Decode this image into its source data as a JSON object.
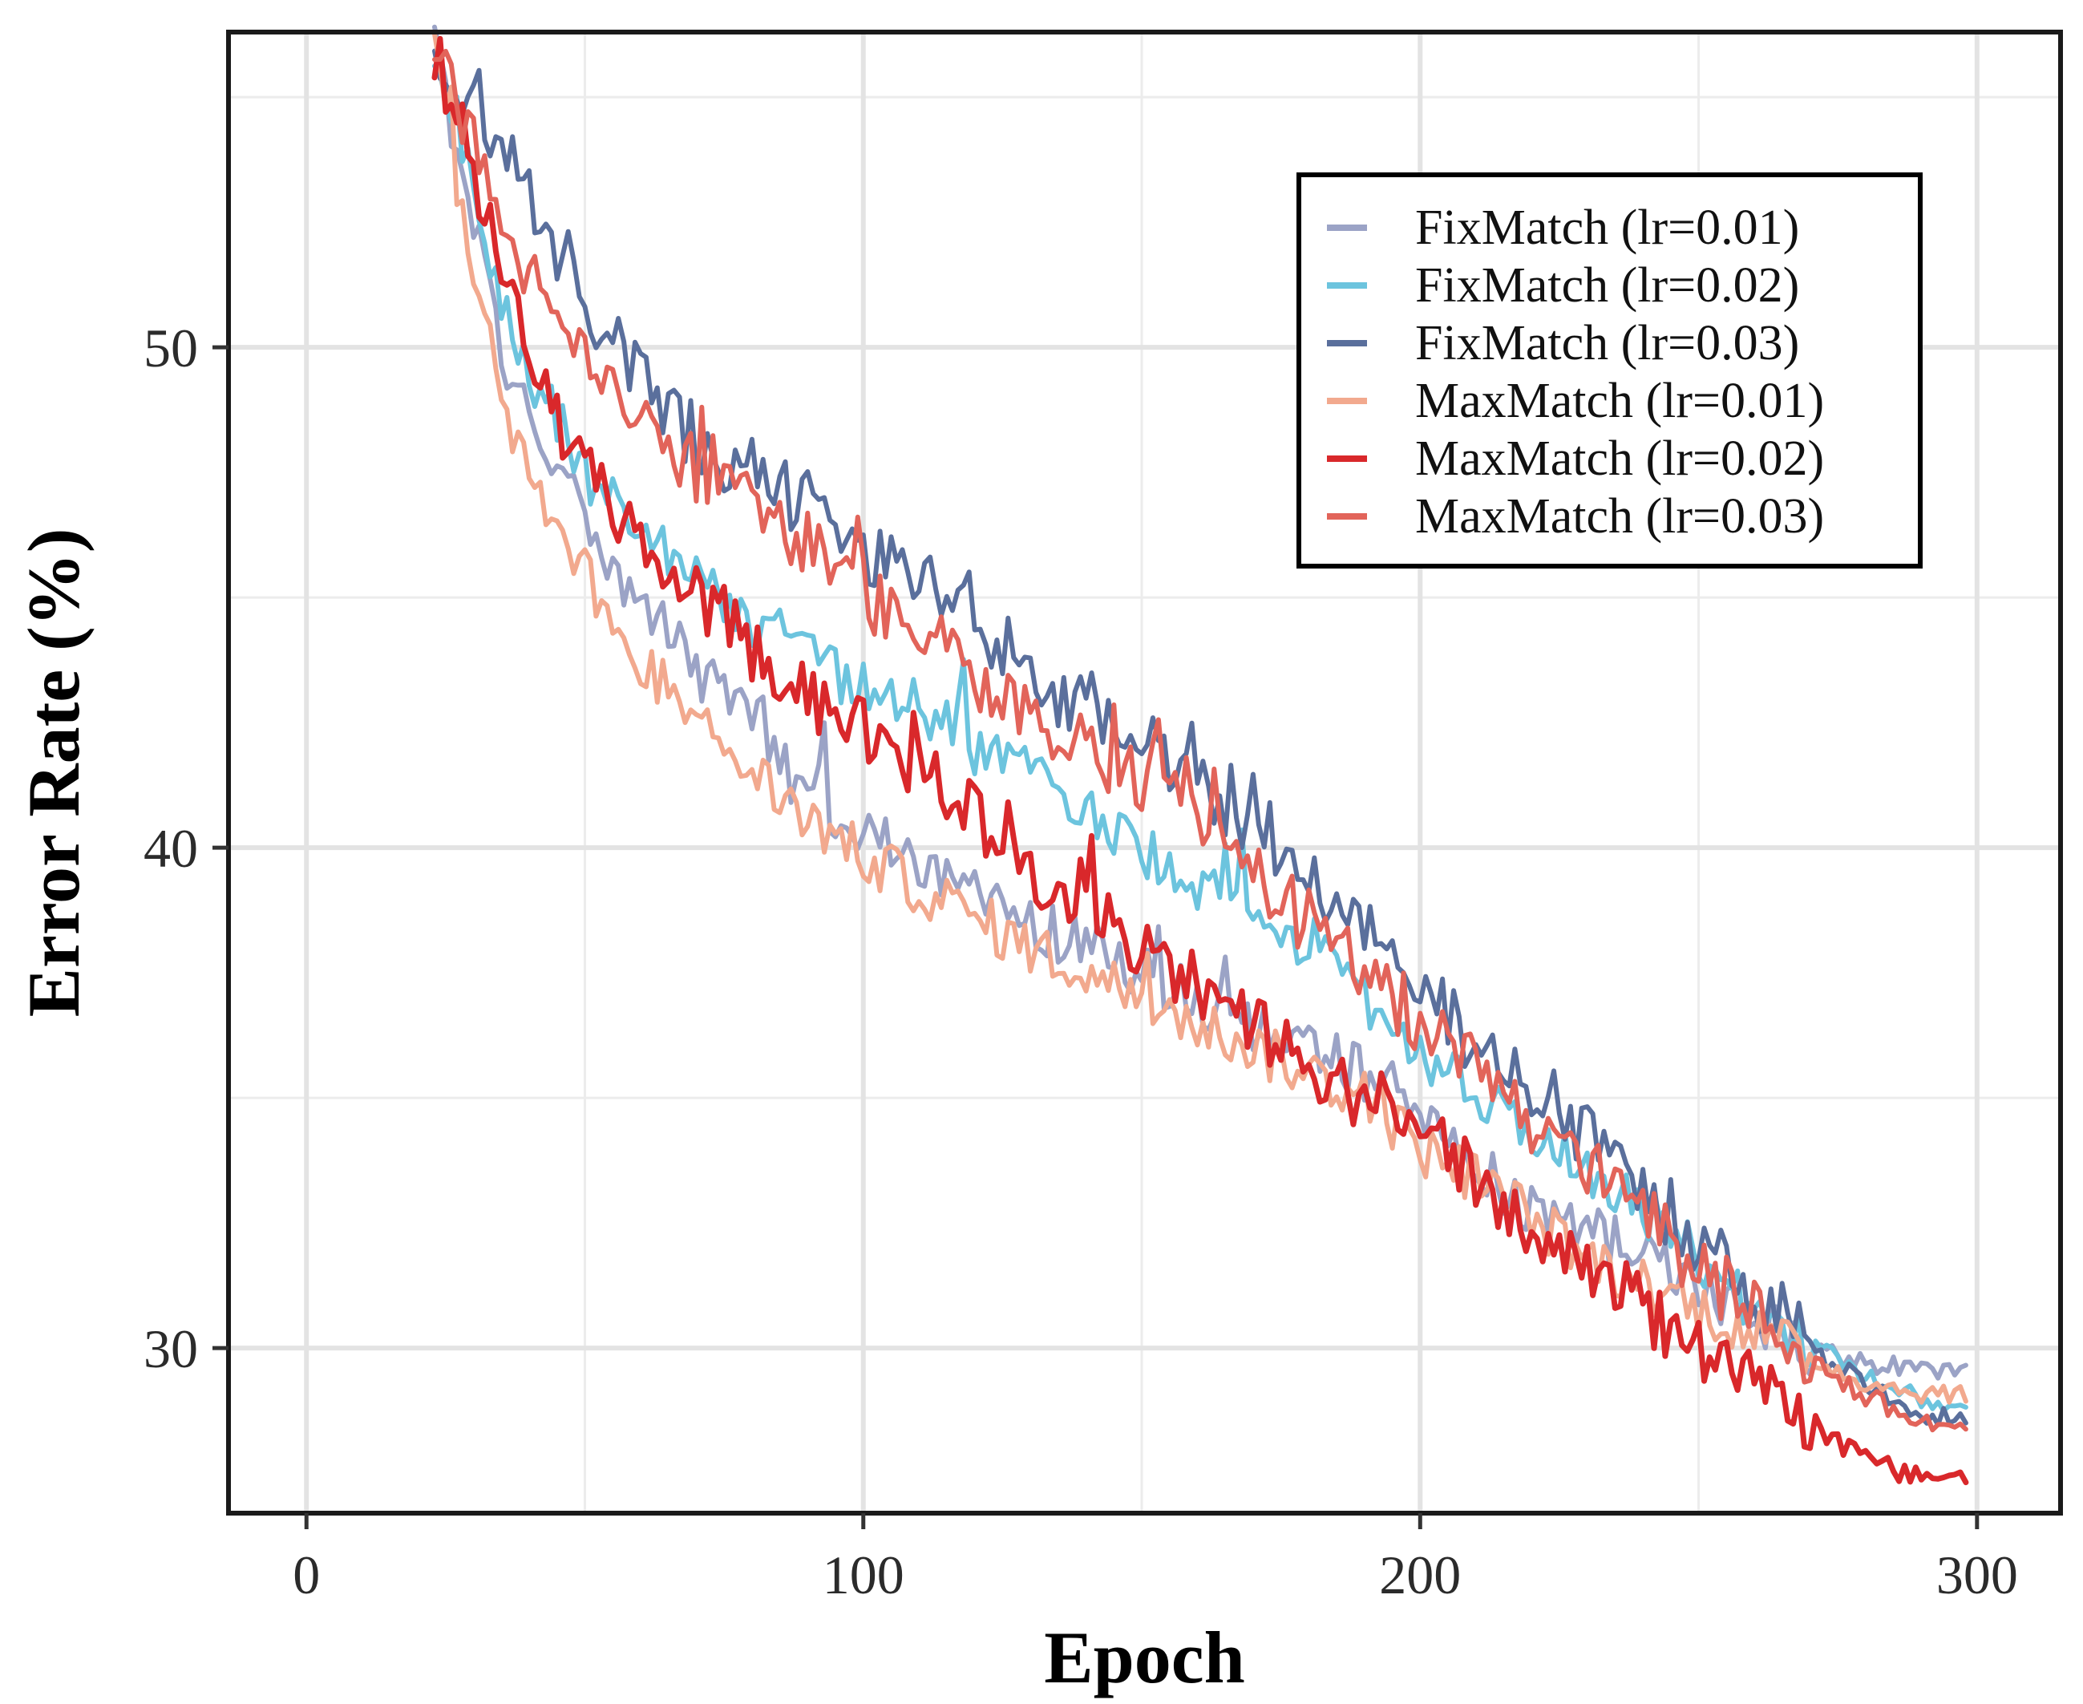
{
  "chart_data": {
    "type": "line",
    "title": "",
    "xlabel": "Epoch",
    "ylabel": "Error Rate (%)",
    "xlim": [
      -14,
      315
    ],
    "ylim": [
      26.7,
      56.3
    ],
    "xticks": [
      0,
      100,
      200,
      300
    ],
    "xtick_labels": [
      "0",
      "100",
      "200",
      "300"
    ],
    "yticks": [
      30,
      40,
      50
    ],
    "ytick_labels": [
      "30",
      "40",
      "50"
    ],
    "grid": true,
    "legend_position": "top-right",
    "series": [
      {
        "name": "FixMatch (lr=0.01)",
        "color": "#9ba3c6",
        "noise": 0.55,
        "x": [
          23,
          26,
          30,
          35,
          40,
          45,
          50,
          55,
          60,
          70,
          80,
          90,
          100,
          110,
          120,
          130,
          140,
          150,
          160,
          170,
          180,
          190,
          200,
          210,
          220,
          230,
          240,
          250,
          260,
          270,
          280,
          290,
          298
        ],
        "y": [
          56,
          54.5,
          52.5,
          50,
          48.5,
          47.5,
          46.5,
          45.5,
          45,
          43.5,
          42.5,
          41,
          40.3,
          39.8,
          39,
          38.5,
          38,
          37.5,
          37,
          36.5,
          36,
          35.5,
          34.5,
          33.6,
          32.8,
          32.4,
          31.8,
          31.2,
          30.6,
          30,
          29.7,
          29.6,
          29.5
        ]
      },
      {
        "name": "FixMatch (lr=0.02)",
        "color": "#6cc4de",
        "noise": 0.55,
        "x": [
          23,
          26,
          30,
          35,
          40,
          45,
          50,
          55,
          60,
          70,
          80,
          90,
          100,
          110,
          120,
          130,
          140,
          150,
          160,
          170,
          180,
          190,
          200,
          210,
          220,
          230,
          240,
          250,
          260,
          270,
          280,
          290,
          298
        ],
        "y": [
          56,
          55,
          53,
          51,
          49.5,
          48.5,
          47.5,
          47,
          46.5,
          45.5,
          44.5,
          43.8,
          43.2,
          42.8,
          42,
          41.5,
          40.8,
          40,
          39.3,
          38.7,
          38,
          37,
          36,
          35,
          34.3,
          33.6,
          32.8,
          31.8,
          30.8,
          30.1,
          29.4,
          29,
          28.7
        ]
      },
      {
        "name": "FixMatch (lr=0.03)",
        "color": "#5a6f9c",
        "noise": 0.75,
        "x": [
          23,
          26,
          30,
          35,
          40,
          45,
          50,
          55,
          60,
          70,
          80,
          90,
          100,
          110,
          120,
          130,
          140,
          150,
          160,
          170,
          180,
          190,
          200,
          210,
          220,
          230,
          240,
          250,
          260,
          270,
          280,
          290,
          298
        ],
        "y": [
          56,
          55.5,
          55,
          54,
          53,
          52,
          51,
          50,
          49.3,
          48.2,
          47.5,
          46.8,
          46,
          45.3,
          44.5,
          43.5,
          42.8,
          42,
          41.5,
          40.5,
          39.5,
          38.3,
          37,
          36.2,
          35.2,
          34.2,
          33.2,
          32.2,
          31.1,
          30,
          29.2,
          28.6,
          28.6
        ]
      },
      {
        "name": "MaxMatch (lr=0.01)",
        "color": "#f2a98e",
        "noise": 0.55,
        "x": [
          23,
          26,
          30,
          35,
          40,
          45,
          50,
          55,
          60,
          70,
          80,
          90,
          100,
          110,
          120,
          130,
          140,
          150,
          160,
          170,
          180,
          190,
          200,
          210,
          220,
          230,
          240,
          250,
          260,
          270,
          280,
          290,
          298
        ],
        "y": [
          56,
          54,
          51.5,
          49,
          47.5,
          46.5,
          45.5,
          44.5,
          43.8,
          42.5,
          41.5,
          40.6,
          39.8,
          39.2,
          38.6,
          38,
          37.5,
          37,
          36.5,
          36,
          35.5,
          35,
          34,
          33.4,
          32.6,
          31.8,
          31.3,
          30.8,
          30.3,
          29.8,
          29.3,
          29.1,
          29.1
        ]
      },
      {
        "name": "MaxMatch (lr=0.02)",
        "color": "#d9282b",
        "noise": 0.65,
        "x": [
          23,
          26,
          30,
          35,
          40,
          45,
          50,
          55,
          60,
          70,
          80,
          90,
          100,
          110,
          120,
          130,
          140,
          150,
          160,
          170,
          180,
          190,
          200,
          210,
          220,
          230,
          240,
          250,
          260,
          270,
          280,
          290,
          298
        ],
        "y": [
          56,
          55,
          53.5,
          51.5,
          49.8,
          48.5,
          47.5,
          46.8,
          46,
          45,
          44,
          43,
          42.4,
          41.5,
          40.7,
          39.5,
          38.7,
          38,
          37.3,
          36.5,
          35.5,
          35,
          34.8,
          33.3,
          32.5,
          31.8,
          30.8,
          30,
          29.3,
          28.5,
          27.8,
          27.4,
          27.3
        ]
      },
      {
        "name": "MaxMatch (lr=0.03)",
        "color": "#e2645a",
        "noise": 0.7,
        "x": [
          23,
          26,
          30,
          35,
          40,
          45,
          50,
          55,
          60,
          70,
          80,
          90,
          100,
          110,
          120,
          130,
          140,
          150,
          160,
          170,
          180,
          190,
          200,
          210,
          220,
          230,
          240,
          250,
          260,
          270,
          280,
          290,
          298
        ],
        "y": [
          56,
          55,
          54,
          52.5,
          51.5,
          50.5,
          49.8,
          49,
          48.5,
          47.5,
          46.8,
          46,
          45,
          44.3,
          43.5,
          42.8,
          42,
          41.3,
          40.5,
          39.5,
          38.5,
          37.5,
          36.5,
          35.5,
          34.6,
          33.6,
          32.6,
          31.6,
          30.7,
          29.8,
          29,
          28.5,
          28.4
        ]
      }
    ]
  }
}
